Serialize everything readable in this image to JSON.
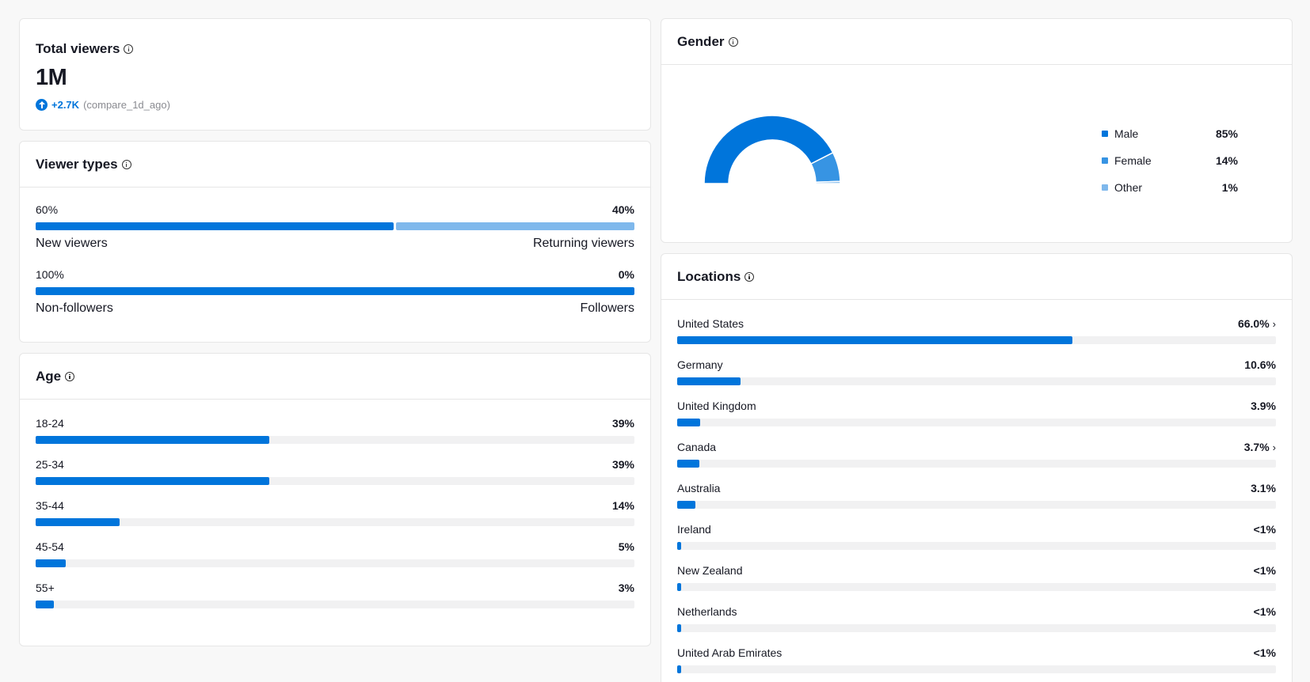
{
  "total_viewers": {
    "title": "Total viewers",
    "value": "1M",
    "delta": "+2.7K",
    "compare": "(compare_1d_ago)"
  },
  "viewer_types": {
    "title": "Viewer types",
    "rows": [
      {
        "left_pct": "60%",
        "right_pct": "40%",
        "left_label": "New viewers",
        "right_label": "Returning viewers",
        "left_share": 60,
        "right_share": 40,
        "left_color": "#0075db",
        "right_color": "#7fb8ec"
      },
      {
        "left_pct": "100%",
        "right_pct": "0%",
        "left_label": "Non-followers",
        "right_label": "Followers",
        "left_share": 100,
        "right_share": 0,
        "left_color": "#0075db",
        "right_color": "#7fb8ec"
      }
    ]
  },
  "age": {
    "title": "Age",
    "items": [
      {
        "label": "18-24",
        "pct": "39%",
        "value": 39
      },
      {
        "label": "25-34",
        "pct": "39%",
        "value": 39
      },
      {
        "label": "35-44",
        "pct": "14%",
        "value": 14
      },
      {
        "label": "45-54",
        "pct": "5%",
        "value": 5
      },
      {
        "label": "55+",
        "pct": "3%",
        "value": 3
      }
    ]
  },
  "gender": {
    "title": "Gender",
    "items": [
      {
        "label": "Male",
        "pct": "85%",
        "value": 85,
        "color": "#0075db"
      },
      {
        "label": "Female",
        "pct": "14%",
        "value": 14,
        "color": "#3794e3"
      },
      {
        "label": "Other",
        "pct": "1%",
        "value": 1,
        "color": "#7fb8ec"
      }
    ]
  },
  "locations": {
    "title": "Locations",
    "items": [
      {
        "label": "United States",
        "pct": "66.0%",
        "value": 66.0,
        "chevron": true
      },
      {
        "label": "Germany",
        "pct": "10.6%",
        "value": 10.6,
        "chevron": false
      },
      {
        "label": "United Kingdom",
        "pct": "3.9%",
        "value": 3.9,
        "chevron": false
      },
      {
        "label": "Canada",
        "pct": "3.7%",
        "value": 3.7,
        "chevron": true
      },
      {
        "label": "Australia",
        "pct": "3.1%",
        "value": 3.1,
        "chevron": false
      },
      {
        "label": "Ireland",
        "pct": "<1%",
        "value": 0.6,
        "chevron": false
      },
      {
        "label": "New Zealand",
        "pct": "<1%",
        "value": 0.6,
        "chevron": false
      },
      {
        "label": "Netherlands",
        "pct": "<1%",
        "value": 0.6,
        "chevron": false
      },
      {
        "label": "United Arab Emirates",
        "pct": "<1%",
        "value": 0.6,
        "chevron": false
      }
    ]
  }
}
